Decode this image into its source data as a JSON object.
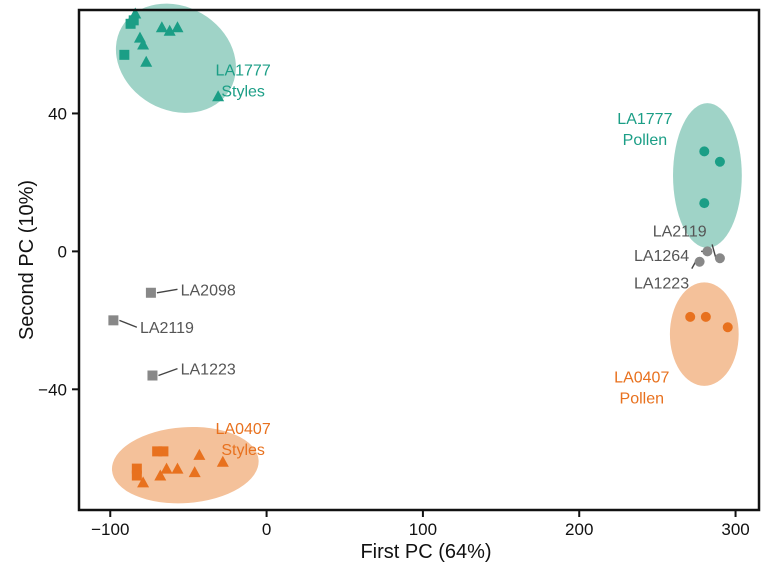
{
  "chart_data": {
    "type": "scatter",
    "title": "",
    "xlabel": "First PC (64%)",
    "ylabel": "Second PC (10%)",
    "xlim": [
      -120,
      315
    ],
    "ylim": [
      -75,
      70
    ],
    "xticks": [
      -100,
      0,
      100,
      200,
      300
    ],
    "xtick_labels": [
      "−100",
      "0",
      "100",
      "200",
      "300"
    ],
    "yticks": [
      -40,
      0,
      40
    ],
    "ytick_labels": [
      "−40",
      "0",
      "40"
    ],
    "grid": false,
    "colors": {
      "teal": "#1b9e86",
      "orange": "#e8711e",
      "gray": "#888888",
      "teal_ellipse": "#9fd3c7",
      "orange_ellipse": "#f4c19a"
    },
    "groups": [
      {
        "id": "la1777-styles",
        "label_lines": [
          "LA1777",
          "Styles"
        ],
        "color": "teal",
        "ellipse": {
          "cx": -58,
          "cy": 56,
          "rx": 40,
          "ry": 15,
          "angle_deg": 30
        },
        "label_anchor": [
          -15,
          51
        ],
        "points": [
          {
            "x": -84,
            "y": 69,
            "shape": "triangle"
          },
          {
            "x": -85,
            "y": 67,
            "shape": "square"
          },
          {
            "x": -87,
            "y": 66,
            "shape": "square"
          },
          {
            "x": -81,
            "y": 62,
            "shape": "triangle"
          },
          {
            "x": -79,
            "y": 60,
            "shape": "triangle"
          },
          {
            "x": -91,
            "y": 57,
            "shape": "square"
          },
          {
            "x": -77,
            "y": 55,
            "shape": "triangle"
          },
          {
            "x": -67,
            "y": 65,
            "shape": "triangle"
          },
          {
            "x": -62,
            "y": 64,
            "shape": "triangle"
          },
          {
            "x": -57,
            "y": 65,
            "shape": "triangle"
          },
          {
            "x": -31,
            "y": 45,
            "shape": "triangle"
          }
        ]
      },
      {
        "id": "la1777-pollen",
        "label_lines": [
          "LA1777",
          "Pollen"
        ],
        "color": "teal",
        "ellipse": {
          "cx": 282,
          "cy": 22,
          "rx": 22,
          "ry": 21,
          "angle_deg": 0
        },
        "label_anchor": [
          242,
          37
        ],
        "points": [
          {
            "x": 280,
            "y": 29,
            "shape": "circle"
          },
          {
            "x": 290,
            "y": 26,
            "shape": "circle"
          },
          {
            "x": 280,
            "y": 14,
            "shape": "circle"
          }
        ]
      },
      {
        "id": "la0407-styles",
        "label_lines": [
          "LA0407",
          "Styles"
        ],
        "color": "orange",
        "ellipse": {
          "cx": -52,
          "cy": -62,
          "rx": 47,
          "ry": 11,
          "angle_deg": -4
        },
        "label_anchor": [
          -15,
          -53
        ],
        "points": [
          {
            "x": -66,
            "y": -58,
            "shape": "square"
          },
          {
            "x": -70,
            "y": -58,
            "shape": "square"
          },
          {
            "x": -83,
            "y": -63,
            "shape": "square"
          },
          {
            "x": -83,
            "y": -65,
            "shape": "square"
          },
          {
            "x": -79,
            "y": -67,
            "shape": "triangle"
          },
          {
            "x": -68,
            "y": -65,
            "shape": "triangle"
          },
          {
            "x": -64,
            "y": -63,
            "shape": "triangle"
          },
          {
            "x": -57,
            "y": -63,
            "shape": "triangle"
          },
          {
            "x": -46,
            "y": -64,
            "shape": "triangle"
          },
          {
            "x": -43,
            "y": -59,
            "shape": "triangle"
          },
          {
            "x": -28,
            "y": -61,
            "shape": "triangle"
          }
        ]
      },
      {
        "id": "la0407-pollen",
        "label_lines": [
          "LA0407",
          "Pollen"
        ],
        "color": "orange",
        "ellipse": {
          "cx": 280,
          "cy": -24,
          "rx": 22,
          "ry": 15,
          "angle_deg": 0
        },
        "label_anchor": [
          240,
          -38
        ],
        "points": [
          {
            "x": 271,
            "y": -19,
            "shape": "circle"
          },
          {
            "x": 281,
            "y": -19,
            "shape": "circle"
          },
          {
            "x": 295,
            "y": -22,
            "shape": "circle"
          }
        ]
      }
    ],
    "gray_points": [
      {
        "x": -74,
        "y": -12,
        "shape": "square",
        "label": "LA2098",
        "label_pos": [
          -55,
          -11
        ],
        "line_to": [
          -57,
          -11
        ]
      },
      {
        "x": -98,
        "y": -20,
        "shape": "square",
        "label": "LA2119",
        "label_pos": [
          -81,
          -22
        ],
        "line_to": [
          -83,
          -22
        ]
      },
      {
        "x": -73,
        "y": -36,
        "shape": "square",
        "label": "LA1223",
        "label_pos": [
          -55,
          -34
        ],
        "line_to": [
          -57,
          -34
        ]
      },
      {
        "x": 290,
        "y": -2,
        "shape": "circle",
        "label": "LA2119",
        "label_pos": [
          247,
          6
        ],
        "line_to": [
          285,
          2
        ]
      },
      {
        "x": 282,
        "y": 0,
        "shape": "circle",
        "label": "LA1264",
        "label_pos": [
          235,
          -1
        ],
        "line_to": [
          278,
          0
        ]
      },
      {
        "x": 277,
        "y": -3,
        "shape": "circle",
        "label": "LA1223",
        "label_pos": [
          235,
          -9
        ],
        "line_to": [
          272,
          -5
        ]
      }
    ]
  }
}
